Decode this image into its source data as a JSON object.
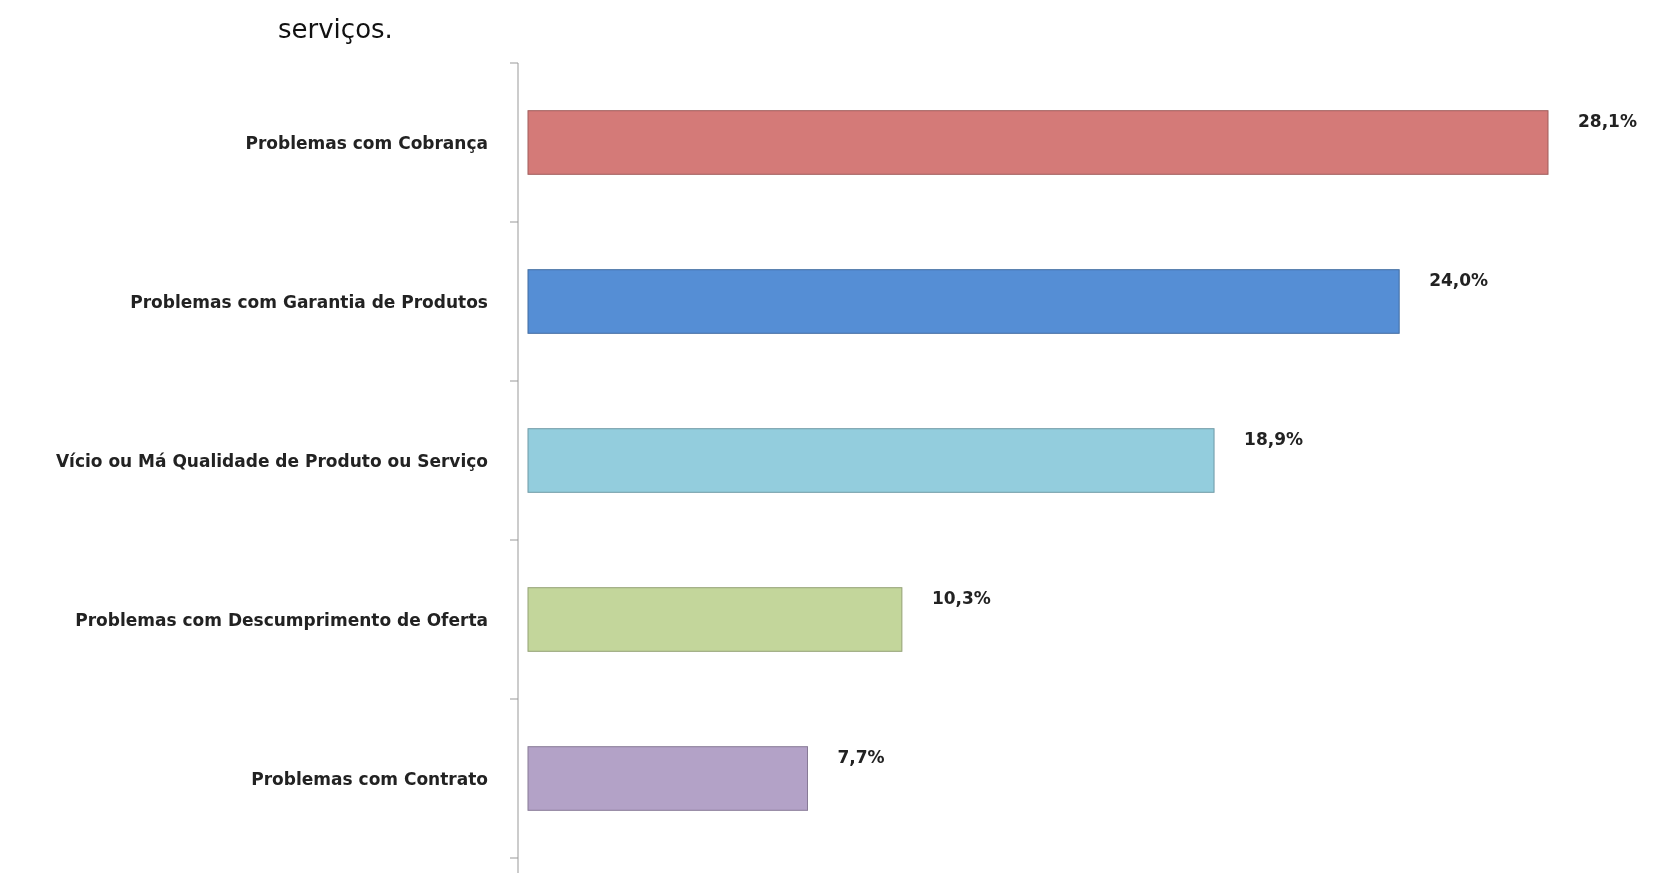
{
  "chart_data": {
    "type": "bar",
    "orientation": "horizontal",
    "title": "serviços.",
    "categories": [
      "Problemas com Cobrança",
      "Problemas com Garantia de Produtos",
      "Vício ou Má Qualidade de Produto ou Serviço",
      "Problemas com Descumprimento de Oferta",
      "Problemas com Contrato"
    ],
    "values": [
      28.1,
      24.0,
      18.9,
      10.3,
      7.7
    ],
    "value_labels": [
      "28,1%",
      "24,0%",
      "18,9%",
      "10,3%",
      "7,7%"
    ],
    "colors": [
      "#d47a78",
      "#558ed5",
      "#93cddd",
      "#c3d69b",
      "#b3a2c7"
    ]
  }
}
